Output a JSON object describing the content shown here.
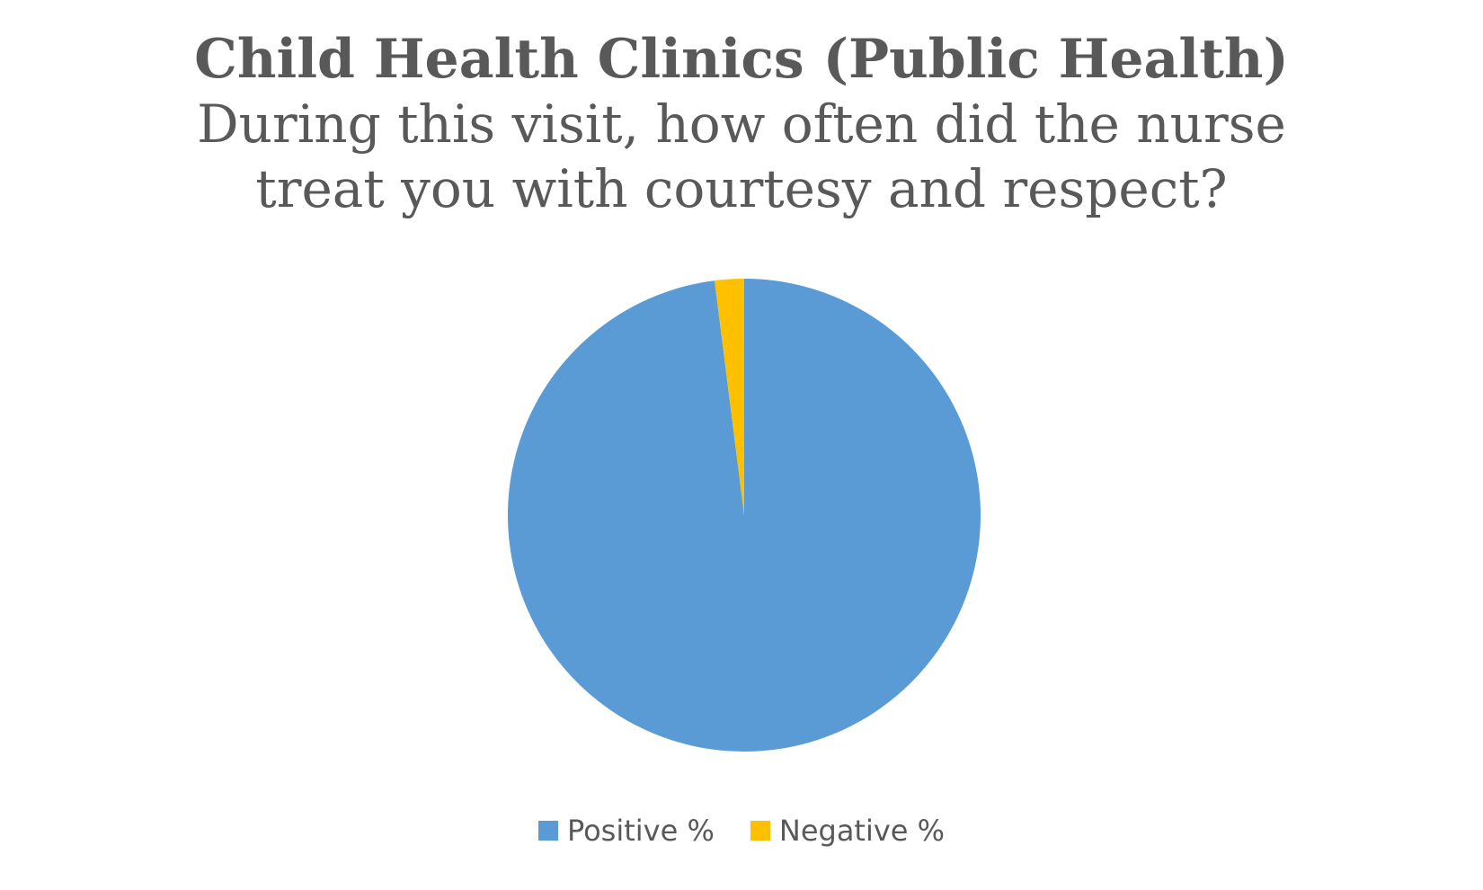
{
  "chart_data": {
    "type": "pie",
    "title": "Child Health Clinics (Public Health)",
    "subtitle_lines": [
      "During this visit, how often did the nurse",
      "treat you with courtesy and respect?"
    ],
    "categories": [
      "Positive %",
      "Negative %"
    ],
    "values": [
      98,
      2
    ],
    "colors": [
      "#5B9BD5",
      "#FFC000"
    ],
    "legend_placement": "bottom"
  }
}
